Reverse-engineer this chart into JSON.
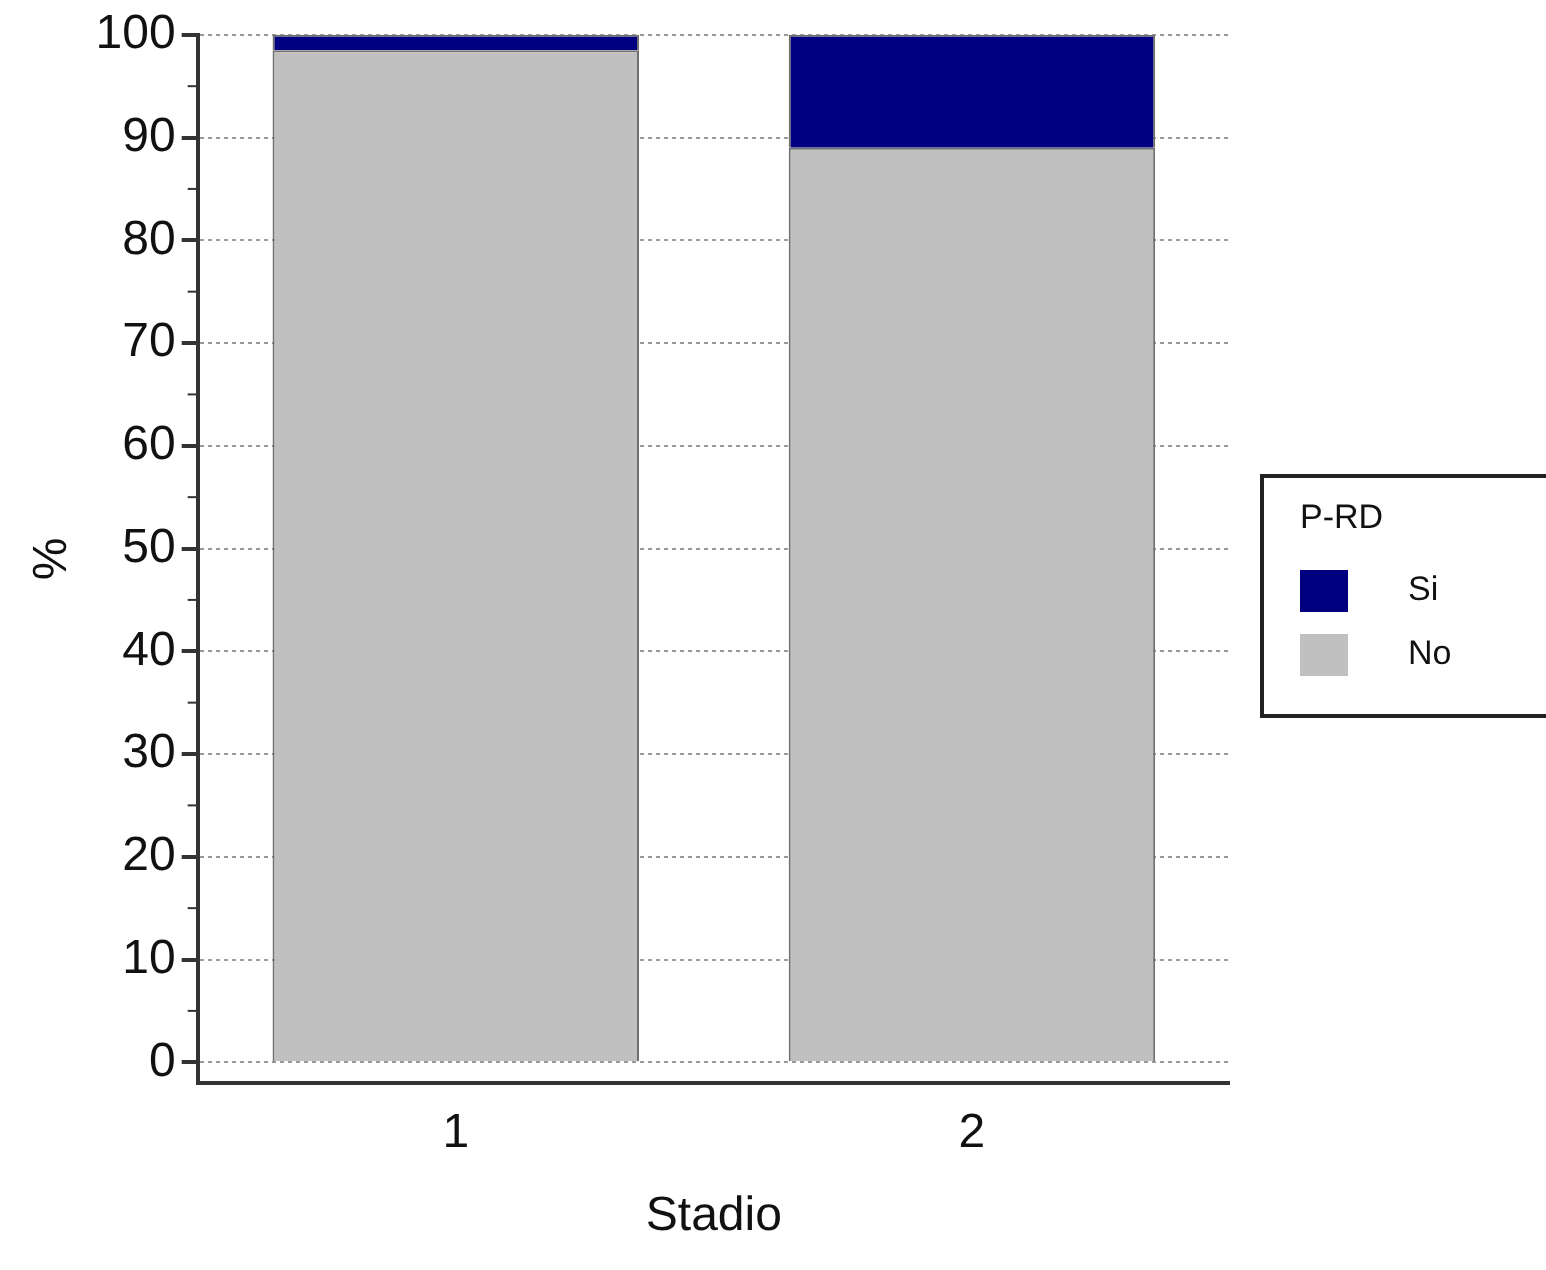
{
  "chart_data": {
    "type": "bar",
    "stacked": true,
    "xlabel": "Stadio",
    "ylabel": "%",
    "legend_title": "P-RD",
    "categories": [
      "1",
      "2"
    ],
    "series": [
      {
        "name": "No",
        "color": "#c0c0c0",
        "values": [
          98.5,
          89
        ]
      },
      {
        "name": "Si",
        "color": "#000080",
        "values": [
          1.5,
          11
        ]
      }
    ],
    "ylim": [
      -2,
      100
    ],
    "yticks": [
      0,
      10,
      20,
      30,
      40,
      50,
      60,
      70,
      80,
      90,
      100
    ],
    "grid": "y",
    "legend": "right"
  }
}
